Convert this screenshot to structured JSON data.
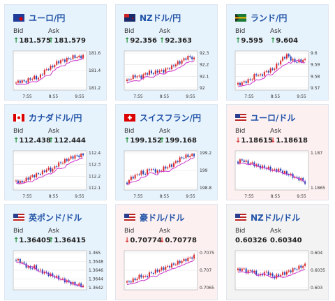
{
  "colors": {
    "up_bg": "#e7f3fc",
    "down_bg": "#fdf0f1",
    "candle_up": "#d8282b",
    "candle_down": "#2b47b5",
    "ma_line": "#cc33cc",
    "title": "#2254a8",
    "arrow_up": "#1f8f3a",
    "arrow_down": "#d3322e"
  },
  "labels": {
    "bid": "Bid",
    "ask": "Ask"
  },
  "cards": [
    {
      "title": "ユーロ/円",
      "flag": "eu-jp",
      "trend": "up",
      "bid": "181.575",
      "ask": "181.579",
      "bid_arrow": "↑",
      "ask_arrow": "↑",
      "yticks": [
        "181.6",
        "181.4",
        "181.2"
      ],
      "xticks": [
        "7:55",
        "8:55",
        "9:55"
      ]
    },
    {
      "title": "NZドル/円",
      "flag": "nz-jp",
      "trend": "up",
      "bid": "92.356",
      "ask": "92.363",
      "bid_arrow": "↑",
      "ask_arrow": "↑",
      "yticks": [
        "92.3",
        "92.2",
        "92.1",
        "92"
      ],
      "xticks": [
        "7:55",
        "8:55",
        "9:55"
      ]
    },
    {
      "title": "ランド/円",
      "flag": "za-jp",
      "trend": "up",
      "bid": "9.595",
      "ask": "9.604",
      "bid_arrow": "↑",
      "ask_arrow": "↑",
      "yticks": [
        "9.6",
        "9.59",
        "9.58",
        "9.57"
      ],
      "xticks": [
        "7:55",
        "8:55",
        "9:55"
      ]
    },
    {
      "title": "カナダドル/円",
      "flag": "ca-jp",
      "trend": "up",
      "bid": "112.438",
      "ask": "112.444",
      "bid_arrow": "↑",
      "ask_arrow": "↑",
      "yticks": [
        "112.4",
        "112.3",
        "112.2",
        "112.1"
      ],
      "xticks": [
        "7:55",
        "8:55",
        "9:55"
      ]
    },
    {
      "title": "スイスフラン/円",
      "flag": "ch-jp",
      "trend": "up",
      "bid": "199.152",
      "ask": "199.168",
      "bid_arrow": "↑",
      "ask_arrow": "↑",
      "yticks": [
        "199.2",
        "199",
        "198.8"
      ],
      "xticks": [
        "7:55",
        "8:55",
        "9:55"
      ]
    },
    {
      "title": "ユーロ/ドル",
      "flag": "eu-us",
      "trend": "down",
      "bid": "1.18615",
      "ask": "1.18618",
      "bid_arrow": "↓",
      "ask_arrow": "↓",
      "yticks": [
        "1.187",
        "1.1865"
      ],
      "xticks": [
        "7:55",
        "8:55",
        "9:55"
      ]
    },
    {
      "title": "英ポンド/ドル",
      "flag": "gb-us",
      "trend": "up",
      "bid": "1.36405",
      "ask": "1.36415",
      "bid_arrow": "↑",
      "ask_arrow": "↑",
      "yticks": [
        "1.365",
        "1.3648",
        "1.3646",
        "1.3644",
        "1.3642"
      ],
      "xticks": []
    },
    {
      "title": "豪ドル/ドル",
      "flag": "au-us",
      "trend": "down",
      "bid": "0.70774",
      "ask": "0.70778",
      "bid_arrow": "↓",
      "ask_arrow": "↓",
      "yticks": [
        "0.7075",
        "0.707",
        "0.7065"
      ],
      "xticks": []
    },
    {
      "title": "NZドル/ドル",
      "flag": "nz-us",
      "trend": "flat",
      "bid": "0.60326",
      "ask": "0.60340",
      "bid_arrow": "",
      "ask_arrow": "",
      "yticks": [
        "0.604",
        "0.6035",
        "0.603"
      ],
      "xticks": []
    }
  ]
}
